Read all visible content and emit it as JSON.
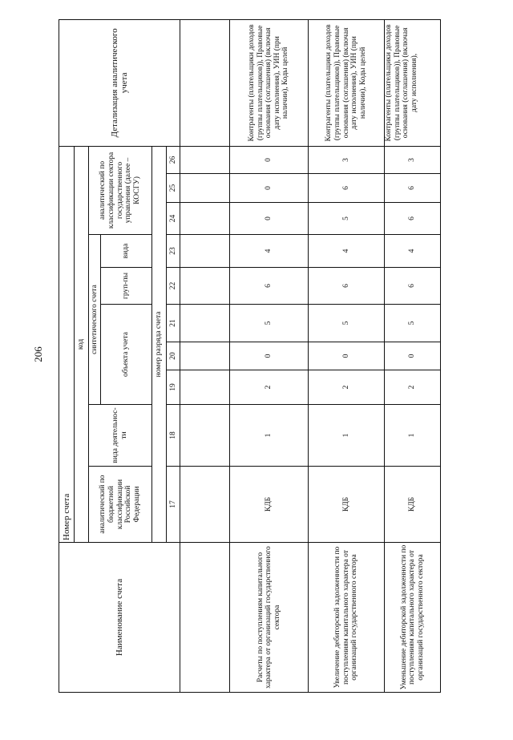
{
  "page_number": "206",
  "header": {
    "account_name": "Наименование счета",
    "account_number": "Номер счета",
    "code": "код",
    "budget_class": "аналитический по бюджетной классификации Российской Федерации",
    "activity_type": "вида деятельнос-ти",
    "synthetic": "синтетического счета",
    "object": "объекта учета",
    "group": "груп-пы",
    "kind": "вида",
    "kosgu": "аналитический по классификации сектора государственного управления (далее – КОСГУ)",
    "detail": "Детализация аналитического учета",
    "digit_number": "номер разряда счета",
    "digits": [
      "17",
      "18",
      "19",
      "20",
      "21",
      "22",
      "23",
      "24",
      "25",
      "26"
    ]
  },
  "rows": [
    {
      "name": "Расчеты по поступлениям капитального характера от организаций государственного сектора",
      "values": [
        "КДБ",
        "1",
        "2",
        "0",
        "5",
        "6",
        "4",
        "0",
        "0",
        "0"
      ],
      "detail": "Контрагенты (плательщики доходов (группы плательщиков)), Правовые основания (соглашения) (включая дату исполнения), УИН (при наличии), Коды целей"
    },
    {
      "name": "Увеличение дебиторской задолженности по поступлениям капитального характера от организаций государственного сектора",
      "values": [
        "КДБ",
        "1",
        "2",
        "0",
        "5",
        "6",
        "4",
        "5",
        "6",
        "3"
      ],
      "detail": "Контрагенты (плательщики доходов (группы плательщиков)), Правовые основания (соглашения) (включая дату исполнения), УИН (при наличии), Коды целей"
    },
    {
      "name": "Уменьшение дебиторской задолженности по поступлениям капитального характера от организаций государственного сектора",
      "values": [
        "КДБ",
        "1",
        "2",
        "0",
        "5",
        "6",
        "4",
        "6",
        "6",
        "3"
      ],
      "detail": "Контрагенты (плательщики доходов (группы плательщиков)), Правовые основания (соглашения) (включая дату исполнения),"
    }
  ]
}
